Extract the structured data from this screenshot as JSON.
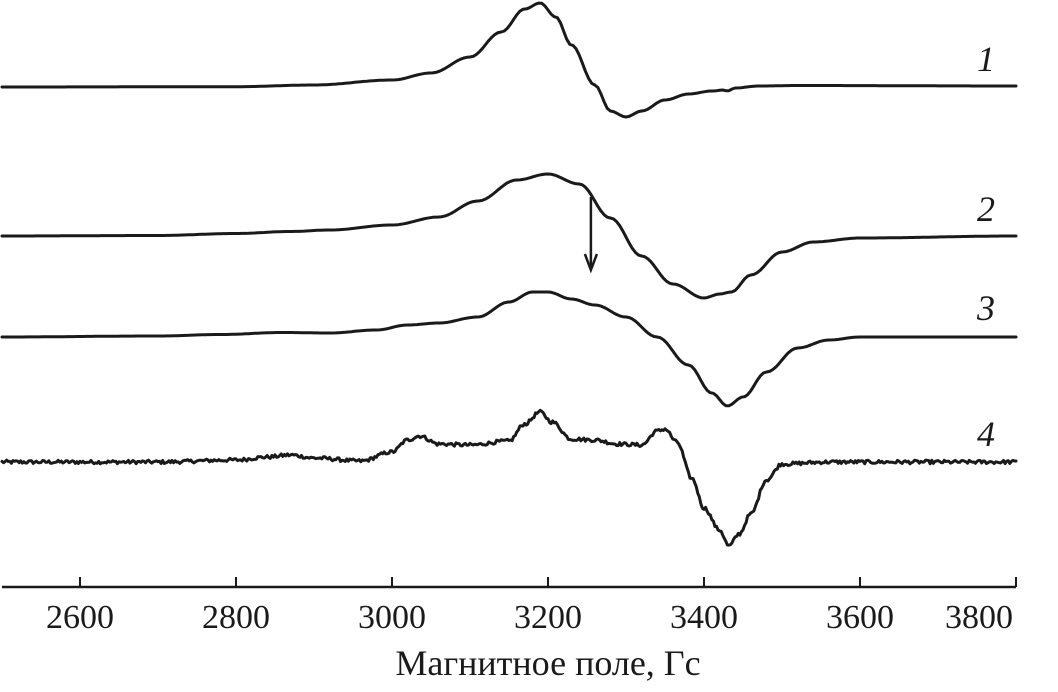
{
  "chart_data": {
    "type": "line",
    "title": "",
    "xlabel": "Магнитное поле, Гс",
    "ylabel": "",
    "xlim": [
      2500,
      3800
    ],
    "xticks": [
      2600,
      2800,
      3000,
      3200,
      3400,
      3600,
      3800
    ],
    "grid": false,
    "legend": "inline labels at right end of each curve",
    "arrow": {
      "x": 3255,
      "on_series": "3"
    },
    "series": [
      {
        "name": "1",
        "baseline": 0,
        "noise": 0,
        "x": [
          2500,
          2800,
          2900,
          3000,
          3050,
          3100,
          3140,
          3170,
          3190,
          3210,
          3230,
          3260,
          3280,
          3300,
          3320,
          3350,
          3380,
          3410,
          3425,
          3430,
          3440,
          3470,
          3520,
          3800
        ],
        "y": [
          0,
          0.3,
          2,
          7,
          14,
          30,
          55,
          78,
          84,
          70,
          42,
          2,
          -24,
          -30,
          -24,
          -13,
          -7,
          -4,
          -3,
          -4,
          -1,
          1,
          1.5,
          1
        ]
      },
      {
        "name": "2",
        "baseline": 0,
        "noise": 0,
        "x": [
          2500,
          2700,
          2800,
          2870,
          2920,
          3000,
          3060,
          3110,
          3160,
          3200,
          3240,
          3280,
          3320,
          3360,
          3400,
          3420,
          3435,
          3460,
          3500,
          3540,
          3600,
          3800
        ],
        "y": [
          0,
          0.5,
          2.5,
          4.5,
          6,
          11,
          19,
          35,
          56,
          62,
          52,
          18,
          -20,
          -48,
          -62,
          -58,
          -56,
          -39,
          -16,
          -6,
          -2,
          0
        ]
      },
      {
        "name": "3",
        "baseline": 0,
        "noise": 0,
        "x": [
          2500,
          2700,
          2780,
          2860,
          2920,
          2980,
          3020,
          3060,
          3110,
          3150,
          3180,
          3200,
          3230,
          3260,
          3300,
          3340,
          3380,
          3410,
          3430,
          3450,
          3480,
          3520,
          3560,
          3600,
          3800
        ],
        "y": [
          0,
          1,
          2.5,
          4.5,
          4,
          7,
          12,
          14,
          20,
          35,
          45,
          45,
          38,
          32,
          20,
          0,
          -28,
          -56,
          -69,
          -60,
          -35,
          -11,
          -3,
          0,
          0
        ]
      },
      {
        "name": "4",
        "baseline": 0,
        "noise": 1.8,
        "x": [
          2500,
          2700,
          2800,
          2840,
          2870,
          2900,
          2960,
          3000,
          3020,
          3035,
          3060,
          3100,
          3150,
          3170,
          3190,
          3205,
          3230,
          3260,
          3290,
          3320,
          3340,
          3350,
          3365,
          3385,
          3400,
          3420,
          3432,
          3445,
          3460,
          3480,
          3500,
          3560,
          3800
        ],
        "y": [
          0,
          0,
          2,
          5,
          7,
          4,
          1,
          10,
          22,
          26,
          18,
          17,
          21,
          38,
          50,
          40,
          23,
          22,
          18,
          17,
          31,
          33,
          20,
          -17,
          -46,
          -68,
          -84,
          -72,
          -52,
          -18,
          -2,
          0,
          0
        ]
      }
    ]
  }
}
